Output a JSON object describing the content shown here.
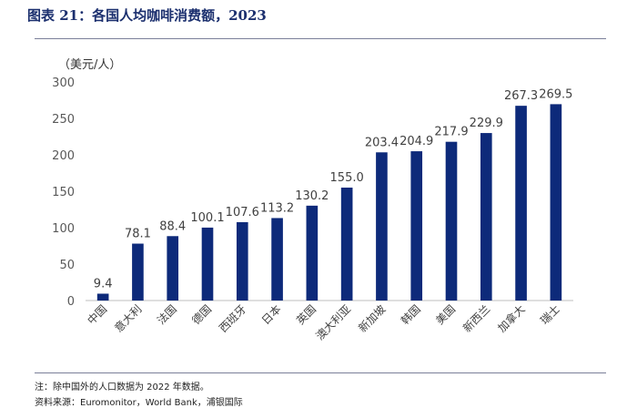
{
  "header": {
    "title": "图表 21：各国人均咖啡消费额，2023"
  },
  "chart_data": {
    "type": "bar",
    "title": "",
    "xlabel": "",
    "ylabel": "（美元/人）",
    "ylim": [
      0,
      300
    ],
    "yticks": [
      0,
      50,
      100,
      150,
      200,
      250,
      300
    ],
    "grid": false,
    "bar_color": "#0d2a7a",
    "categories": [
      "中国",
      "意大利",
      "法国",
      "德国",
      "西班牙",
      "日本",
      "英国",
      "澳大利亚",
      "新加坡",
      "韩国",
      "美国",
      "新西兰",
      "加拿大",
      "瑞士"
    ],
    "values": [
      9.4,
      78.1,
      88.4,
      100.1,
      107.6,
      113.2,
      130.2,
      155.0,
      203.4,
      204.9,
      217.9,
      229.9,
      267.3,
      269.5
    ],
    "value_labels": [
      "9.4",
      "78.1",
      "88.4",
      "100.1",
      "107.6",
      "113.2",
      "130.2",
      "155.0",
      "203.4",
      "204.9",
      "217.9",
      "229.9",
      "267.3",
      "269.5"
    ]
  },
  "footer": {
    "note": "注：除中国外的人口数据为 2022 年数据。",
    "source": "资料来源：Euromonitor，World Bank，浦银国际"
  }
}
